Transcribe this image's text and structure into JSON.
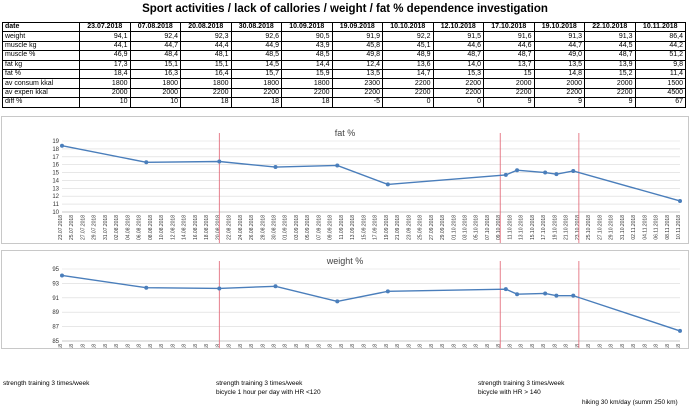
{
  "title": "Sport activities / lack of callories / weight / fat %  dependence investigation",
  "table": {
    "header_label": "date",
    "dates": [
      "23.07.2018",
      "07.08.2018",
      "20.08.2018",
      "30.08.2018",
      "10.09.2018",
      "19.09.2018",
      "10.10.2018",
      "12.10.2018",
      "17.10.2018",
      "19.10.2018",
      "22.10.2018",
      "10.11.2018"
    ],
    "rows": [
      {
        "label": "weight",
        "values": [
          "94,1",
          "92,4",
          "92,3",
          "92,6",
          "90,5",
          "91,9",
          "92,2",
          "91,5",
          "91,6",
          "91,3",
          "91,3",
          "86,4"
        ]
      },
      {
        "label": "muscle kg",
        "values": [
          "44,1",
          "44,7",
          "44,4",
          "44,9",
          "43,9",
          "45,8",
          "45,1",
          "44,6",
          "44,6",
          "44,7",
          "44,5",
          "44,2"
        ]
      },
      {
        "label": "muscle %",
        "values": [
          "46,9",
          "48,4",
          "48,1",
          "48,5",
          "48,5",
          "49,8",
          "48,9",
          "48,7",
          "48,7",
          "49,0",
          "48,7",
          "51,2"
        ]
      },
      {
        "label": "fat kg",
        "values": [
          "17,3",
          "15,1",
          "15,1",
          "14,5",
          "14,4",
          "12,4",
          "13,6",
          "14,0",
          "13,7",
          "13,5",
          "13,9",
          "9,8"
        ]
      },
      {
        "label": "fat %",
        "values": [
          "18,4",
          "16,3",
          "16,4",
          "15,7",
          "15,9",
          "13,5",
          "14,7",
          "15,3",
          "15",
          "14,8",
          "15,2",
          "11,4"
        ]
      },
      {
        "label": "av consum kkal",
        "values": [
          "1800",
          "1800",
          "1800",
          "1800",
          "1800",
          "2300",
          "2200",
          "2200",
          "2000",
          "2000",
          "2000",
          "1500"
        ]
      },
      {
        "label": "av expen kkal",
        "values": [
          "2000",
          "2000",
          "2200",
          "2200",
          "2200",
          "2200",
          "2200",
          "2200",
          "2200",
          "2200",
          "2200",
          "4500"
        ]
      },
      {
        "label": "diff %",
        "values": [
          "10",
          "10",
          "18",
          "18",
          "18",
          "-5",
          "0",
          "0",
          "9",
          "9",
          "9",
          "67"
        ]
      }
    ]
  },
  "chart_data": [
    {
      "type": "line",
      "title": "fat %",
      "ylim": [
        10,
        19
      ],
      "yticks": [
        10,
        11,
        12,
        13,
        14,
        15,
        16,
        17,
        18,
        19
      ],
      "grid": true,
      "series": [
        {
          "color": "#4a7ebb",
          "points": [
            {
              "x": "23.07.2018",
              "y": 18.4
            },
            {
              "x": "07.08.2018",
              "y": 16.3
            },
            {
              "x": "20.08.2018",
              "y": 16.4
            },
            {
              "x": "30.08.2018",
              "y": 15.7
            },
            {
              "x": "10.09.2018",
              "y": 15.9
            },
            {
              "x": "19.09.2018",
              "y": 13.5
            },
            {
              "x": "10.10.2018",
              "y": 14.7
            },
            {
              "x": "12.10.2018",
              "y": 15.3
            },
            {
              "x": "17.10.2018",
              "y": 15
            },
            {
              "x": "19.10.2018",
              "y": 14.8
            },
            {
              "x": "22.10.2018",
              "y": 15.2
            },
            {
              "x": "10.11.2018",
              "y": 11.4
            }
          ]
        }
      ],
      "markers": [
        "20.08.2018",
        "09.10.2018",
        "23.10.2018"
      ]
    },
    {
      "type": "line",
      "title": "weight %",
      "ylim": [
        85,
        95
      ],
      "yticks": [
        85,
        87,
        89,
        91,
        93,
        95
      ],
      "grid": true,
      "series": [
        {
          "color": "#4a7ebb",
          "points": [
            {
              "x": "23.07.2018",
              "y": 94.1
            },
            {
              "x": "07.08.2018",
              "y": 92.4
            },
            {
              "x": "20.08.2018",
              "y": 92.3
            },
            {
              "x": "30.08.2018",
              "y": 92.6
            },
            {
              "x": "10.09.2018",
              "y": 90.5
            },
            {
              "x": "19.09.2018",
              "y": 91.9
            },
            {
              "x": "10.10.2018",
              "y": 92.2
            },
            {
              "x": "12.10.2018",
              "y": 91.5
            },
            {
              "x": "17.10.2018",
              "y": 91.6
            },
            {
              "x": "19.10.2018",
              "y": 91.3
            },
            {
              "x": "22.10.2018",
              "y": 91.3
            },
            {
              "x": "10.11.2018",
              "y": 86.4
            }
          ]
        }
      ],
      "markers": [
        "20.08.2018",
        "09.10.2018",
        "23.10.2018"
      ]
    }
  ],
  "x_axis": {
    "start": "23.07.2018",
    "end": "10.11.2018",
    "step_days": 2
  },
  "annotations": [
    {
      "lines": [
        "strength training 3 times/week"
      ]
    },
    {
      "lines": [
        "strength training 3 times/week",
        "bicycle 1 hour per day with HR <120"
      ]
    },
    {
      "lines": [
        "strength training 3 times/week",
        "bicycle with HR > 140"
      ]
    },
    {
      "lines": [
        "hiking 30 km/day (summ 250 km)"
      ]
    }
  ]
}
